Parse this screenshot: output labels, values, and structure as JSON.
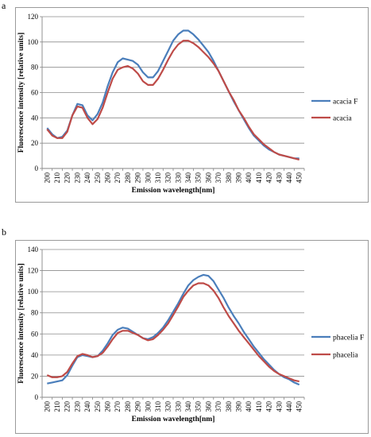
{
  "panels": [
    {
      "letter": "a",
      "chart_data": {
        "type": "line",
        "title": "",
        "xlabel": "Emission wavelength[nm]",
        "ylabel": "Fluorescence intensity [relative units]",
        "x": [
          200,
          210,
          220,
          230,
          240,
          250,
          260,
          270,
          280,
          290,
          300,
          310,
          320,
          330,
          340,
          350,
          360,
          370,
          380,
          390,
          400,
          410,
          420,
          430,
          440,
          450
        ],
        "x_ticks": [
          "200",
          "210",
          "220",
          "230",
          "240",
          "250",
          "260",
          "270",
          "280",
          "290",
          "300",
          "310",
          "320",
          "330",
          "340",
          "350",
          "360",
          "370",
          "380",
          "390",
          "400",
          "410",
          "420",
          "430",
          "440",
          "450"
        ],
        "y_ticks": [
          "0",
          "20",
          "40",
          "60",
          "80",
          "100",
          "120"
        ],
        "ylim": [
          0,
          120
        ],
        "grid": "horizontal",
        "legend": "right",
        "series": [
          {
            "name": "acacia F",
            "color": "#4a7ebb",
            "points": [
              [
                200,
                32
              ],
              [
                205,
                27
              ],
              [
                210,
                24
              ],
              [
                215,
                25
              ],
              [
                220,
                30
              ],
              [
                225,
                42
              ],
              [
                230,
                51
              ],
              [
                235,
                50
              ],
              [
                240,
                42
              ],
              [
                245,
                38
              ],
              [
                250,
                43
              ],
              [
                255,
                52
              ],
              [
                260,
                65
              ],
              [
                265,
                76
              ],
              [
                270,
                84
              ],
              [
                275,
                87
              ],
              [
                280,
                86
              ],
              [
                285,
                85
              ],
              [
                290,
                82
              ],
              [
                295,
                76
              ],
              [
                300,
                72
              ],
              [
                305,
                72
              ],
              [
                310,
                77
              ],
              [
                315,
                85
              ],
              [
                320,
                93
              ],
              [
                325,
                101
              ],
              [
                330,
                106
              ],
              [
                335,
                109
              ],
              [
                340,
                109
              ],
              [
                345,
                106
              ],
              [
                350,
                102
              ],
              [
                355,
                97
              ],
              [
                360,
                92
              ],
              [
                365,
                85
              ],
              [
                370,
                77
              ],
              [
                375,
                69
              ],
              [
                380,
                61
              ],
              [
                385,
                53
              ],
              [
                390,
                46
              ],
              [
                395,
                39
              ],
              [
                400,
                32
              ],
              [
                405,
                26
              ],
              [
                410,
                22
              ],
              [
                415,
                18
              ],
              [
                420,
                15
              ],
              [
                425,
                13
              ],
              [
                430,
                11
              ],
              [
                435,
                10
              ],
              [
                440,
                9
              ],
              [
                445,
                8
              ],
              [
                450,
                8
              ]
            ]
          },
          {
            "name": "acacia",
            "color": "#be4b48",
            "points": [
              [
                200,
                31
              ],
              [
                205,
                26
              ],
              [
                210,
                24
              ],
              [
                215,
                24
              ],
              [
                220,
                29
              ],
              [
                225,
                42
              ],
              [
                230,
                49
              ],
              [
                235,
                48
              ],
              [
                240,
                40
              ],
              [
                245,
                35
              ],
              [
                250,
                39
              ],
              [
                255,
                48
              ],
              [
                260,
                60
              ],
              [
                265,
                71
              ],
              [
                270,
                78
              ],
              [
                275,
                80
              ],
              [
                280,
                81
              ],
              [
                285,
                79
              ],
              [
                290,
                75
              ],
              [
                295,
                69
              ],
              [
                300,
                66
              ],
              [
                305,
                66
              ],
              [
                310,
                71
              ],
              [
                315,
                78
              ],
              [
                320,
                86
              ],
              [
                325,
                93
              ],
              [
                330,
                98
              ],
              [
                335,
                101
              ],
              [
                340,
                101
              ],
              [
                345,
                99
              ],
              [
                350,
                96
              ],
              [
                355,
                92
              ],
              [
                360,
                88
              ],
              [
                365,
                83
              ],
              [
                370,
                77
              ],
              [
                375,
                69
              ],
              [
                380,
                61
              ],
              [
                385,
                54
              ],
              [
                390,
                46
              ],
              [
                395,
                40
              ],
              [
                400,
                33
              ],
              [
                405,
                27
              ],
              [
                410,
                23
              ],
              [
                415,
                19
              ],
              [
                420,
                16
              ],
              [
                425,
                13
              ],
              [
                430,
                11
              ],
              [
                435,
                10
              ],
              [
                440,
                9
              ],
              [
                445,
                8
              ],
              [
                450,
                7
              ]
            ]
          }
        ]
      }
    },
    {
      "letter": "b",
      "chart_data": {
        "type": "line",
        "title": "",
        "xlabel": "Emission wavelength[nm]",
        "ylabel": "Fluorescence intensity [relative units]",
        "x": [
          200,
          210,
          220,
          230,
          240,
          250,
          260,
          270,
          280,
          290,
          300,
          310,
          320,
          330,
          340,
          350,
          360,
          370,
          380,
          390,
          400,
          410,
          420,
          430,
          440,
          450
        ],
        "x_ticks": [
          "200",
          "210",
          "220",
          "230",
          "240",
          "250",
          "260",
          "270",
          "280",
          "290",
          "300",
          "310",
          "320",
          "330",
          "340",
          "350",
          "360",
          "370",
          "380",
          "390",
          "400",
          "410",
          "420",
          "430",
          "440",
          "450"
        ],
        "y_ticks": [
          "0",
          "20",
          "40",
          "60",
          "80",
          "100",
          "120",
          "140"
        ],
        "ylim": [
          0,
          140
        ],
        "grid": "horizontal",
        "legend": "right",
        "series": [
          {
            "name": "phacelia F",
            "color": "#4a7ebb",
            "points": [
              [
                200,
                13
              ],
              [
                205,
                14
              ],
              [
                210,
                15
              ],
              [
                215,
                16
              ],
              [
                220,
                21
              ],
              [
                225,
                30
              ],
              [
                230,
                38
              ],
              [
                235,
                40
              ],
              [
                240,
                39
              ],
              [
                245,
                38
              ],
              [
                250,
                39
              ],
              [
                255,
                44
              ],
              [
                260,
                51
              ],
              [
                265,
                59
              ],
              [
                270,
                64
              ],
              [
                275,
                66
              ],
              [
                280,
                65
              ],
              [
                285,
                62
              ],
              [
                290,
                59
              ],
              [
                295,
                56
              ],
              [
                300,
                55
              ],
              [
                305,
                57
              ],
              [
                310,
                61
              ],
              [
                315,
                66
              ],
              [
                320,
                73
              ],
              [
                325,
                81
              ],
              [
                330,
                89
              ],
              [
                335,
                98
              ],
              [
                340,
                106
              ],
              [
                345,
                111
              ],
              [
                350,
                114
              ],
              [
                355,
                116
              ],
              [
                360,
                115
              ],
              [
                365,
                110
              ],
              [
                370,
                102
              ],
              [
                375,
                94
              ],
              [
                380,
                85
              ],
              [
                385,
                77
              ],
              [
                390,
                70
              ],
              [
                395,
                62
              ],
              [
                400,
                55
              ],
              [
                405,
                48
              ],
              [
                410,
                42
              ],
              [
                415,
                36
              ],
              [
                420,
                31
              ],
              [
                425,
                26
              ],
              [
                430,
                22
              ],
              [
                435,
                19
              ],
              [
                440,
                17
              ],
              [
                445,
                14
              ],
              [
                450,
                12
              ]
            ]
          },
          {
            "name": "phacelia",
            "color": "#be4b48",
            "points": [
              [
                200,
                21
              ],
              [
                205,
                19
              ],
              [
                210,
                19
              ],
              [
                215,
                20
              ],
              [
                220,
                24
              ],
              [
                225,
                32
              ],
              [
                230,
                39
              ],
              [
                235,
                41
              ],
              [
                240,
                40
              ],
              [
                245,
                38
              ],
              [
                250,
                39
              ],
              [
                255,
                42
              ],
              [
                260,
                48
              ],
              [
                265,
                55
              ],
              [
                270,
                61
              ],
              [
                275,
                63
              ],
              [
                280,
                63
              ],
              [
                285,
                61
              ],
              [
                290,
                59
              ],
              [
                295,
                56
              ],
              [
                300,
                54
              ],
              [
                305,
                55
              ],
              [
                310,
                59
              ],
              [
                315,
                64
              ],
              [
                320,
                70
              ],
              [
                325,
                78
              ],
              [
                330,
                86
              ],
              [
                335,
                95
              ],
              [
                340,
                101
              ],
              [
                345,
                106
              ],
              [
                350,
                108
              ],
              [
                355,
                108
              ],
              [
                360,
                106
              ],
              [
                365,
                101
              ],
              [
                370,
                94
              ],
              [
                375,
                85
              ],
              [
                380,
                77
              ],
              [
                385,
                70
              ],
              [
                390,
                63
              ],
              [
                395,
                57
              ],
              [
                400,
                51
              ],
              [
                405,
                45
              ],
              [
                410,
                39
              ],
              [
                415,
                34
              ],
              [
                420,
                29
              ],
              [
                425,
                25
              ],
              [
                430,
                22
              ],
              [
                435,
                20
              ],
              [
                440,
                18
              ],
              [
                445,
                16
              ],
              [
                450,
                15
              ]
            ]
          }
        ]
      }
    }
  ]
}
